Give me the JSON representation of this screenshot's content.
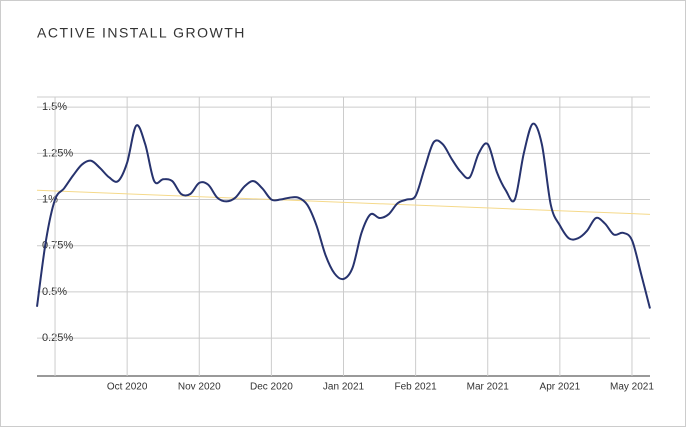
{
  "chart_data": {
    "type": "line",
    "title": "ACTIVE INSTALL GROWTH",
    "categories": [
      null,
      null,
      null,
      null,
      null,
      null,
      null,
      null,
      null,
      null,
      "Oct 2020",
      null,
      null,
      null,
      null,
      null,
      null,
      null,
      "Nov 2020",
      null,
      null,
      null,
      null,
      null,
      null,
      null,
      "Dec 2020",
      null,
      null,
      null,
      null,
      null,
      null,
      null,
      "Jan 2021",
      null,
      null,
      null,
      null,
      null,
      null,
      null,
      "Feb 2021",
      null,
      null,
      null,
      null,
      null,
      null,
      null,
      "Mar 2021",
      null,
      null,
      null,
      null,
      null,
      null,
      null,
      "Apr 2021",
      null,
      null,
      null,
      null,
      null,
      null,
      null,
      "May 2021",
      null,
      null
    ],
    "values": [
      0.42,
      0.78,
      1.0,
      1.06,
      1.13,
      1.19,
      1.21,
      1.17,
      1.12,
      1.1,
      1.2,
      1.4,
      1.3,
      1.1,
      1.11,
      1.1,
      1.03,
      1.03,
      1.09,
      1.08,
      1.01,
      0.99,
      1.01,
      1.07,
      1.1,
      1.06,
      1.0,
      1.0,
      1.01,
      1.01,
      0.97,
      0.86,
      0.7,
      0.6,
      0.57,
      0.63,
      0.82,
      0.92,
      0.9,
      0.92,
      0.98,
      1.0,
      1.02,
      1.17,
      1.31,
      1.3,
      1.22,
      1.15,
      1.12,
      1.25,
      1.3,
      1.15,
      1.05,
      1.0,
      1.25,
      1.41,
      1.3,
      0.97,
      0.86,
      0.79,
      0.79,
      0.83,
      0.9,
      0.87,
      0.81,
      0.82,
      0.78,
      0.6,
      0.41
    ],
    "color": "#27336e",
    "trendline": {
      "values": [
        1.05,
        0.92
      ],
      "color": "#f5d98a"
    },
    "ylim": [
      0.045,
      1.555
    ],
    "yticks": [
      {
        "value": 0.25,
        "label": "0.25%"
      },
      {
        "value": 0.5,
        "label": "0.5%"
      },
      {
        "value": 0.75,
        "label": "0.75%"
      },
      {
        "value": 1,
        "label": "1%"
      },
      {
        "value": 1.25,
        "label": "1.25%"
      },
      {
        "value": 1.5,
        "label": "1.5%"
      }
    ],
    "grid": true
  }
}
